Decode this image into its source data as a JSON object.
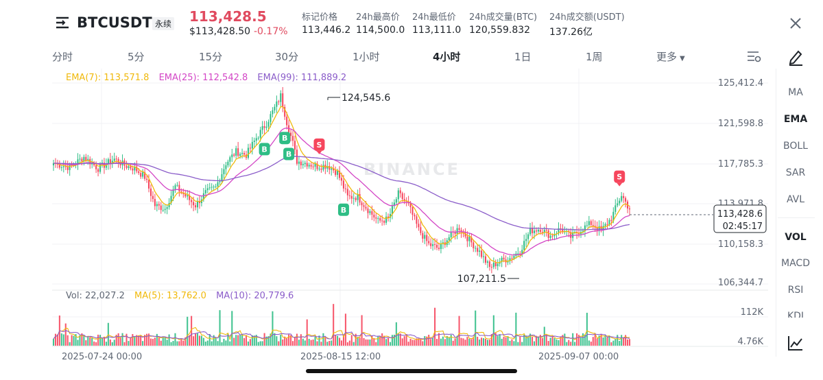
{
  "header": {
    "symbol": "BTCUSDT",
    "contract_type": "永续",
    "last_price": "113,428.5",
    "last_price_usd": "$113,428.50",
    "change_pct": "-0.17%",
    "stats": [
      {
        "label": "标记价格",
        "value": "113,446.2"
      },
      {
        "label": "24h最高价",
        "value": "114,500.0"
      },
      {
        "label": "24h最低价",
        "value": "113,111.0"
      },
      {
        "label": "24h成交量(BTC)",
        "value": "120,559.832"
      },
      {
        "label": "24h成交额(USDT)",
        "value": "137.26亿"
      }
    ]
  },
  "timeframes": [
    "分时",
    "5分",
    "15分",
    "30分",
    "1小时",
    "4小时",
    "1日",
    "1周",
    "更多"
  ],
  "active_timeframe": "4小时",
  "sidebar": [
    "MA",
    "EMA",
    "BOLL",
    "SAR",
    "AVL",
    "VOL",
    "MACD",
    "RSI",
    "KDJ"
  ],
  "sidebar_active": [
    "EMA",
    "VOL"
  ],
  "chart_data": {
    "type": "candlestick",
    "interval": "4h",
    "watermark": "BINANCE",
    "price_axis": [
      "125,412.4",
      "121,598.8",
      "117,785.3",
      "113,971.8",
      "110,158.3",
      "106,344.7"
    ],
    "ylim": [
      106344.7,
      125412.4
    ],
    "x_ticks": [
      "2025-07-24 00:00",
      "2025-08-15 12:00",
      "2025-09-07 00:00"
    ],
    "ema_legend": [
      {
        "name": "EMA(7)",
        "value": "113,571.8",
        "color": "#f0b90b"
      },
      {
        "name": "EMA(25)",
        "value": "112,542.8",
        "color": "#d346c6"
      },
      {
        "name": "EMA(99)",
        "value": "111,889.2",
        "color": "#8a5cc9"
      }
    ],
    "high_label": "124,545.6",
    "low_label": "107,211.5",
    "current_price_label": "113,428.6",
    "countdown": "02:45:17",
    "anchor_closes": [
      [
        0,
        117800
      ],
      [
        8,
        117400
      ],
      [
        15,
        118400
      ],
      [
        22,
        117300
      ],
      [
        30,
        118200
      ],
      [
        35,
        117600
      ],
      [
        40,
        117300
      ],
      [
        45,
        116500
      ],
      [
        50,
        113800
      ],
      [
        55,
        113500
      ],
      [
        60,
        115600
      ],
      [
        65,
        114700
      ],
      [
        70,
        113800
      ],
      [
        75,
        115000
      ],
      [
        80,
        115500
      ],
      [
        85,
        117800
      ],
      [
        90,
        118900
      ],
      [
        95,
        118600
      ],
      [
        100,
        120200
      ],
      [
        105,
        121600
      ],
      [
        110,
        123400
      ],
      [
        112,
        124200
      ],
      [
        115,
        121700
      ],
      [
        118,
        119700
      ],
      [
        120,
        118000
      ],
      [
        125,
        117800
      ],
      [
        130,
        117500
      ],
      [
        135,
        117600
      ],
      [
        140,
        116900
      ],
      [
        145,
        114600
      ],
      [
        150,
        114600
      ],
      [
        155,
        113400
      ],
      [
        160,
        112300
      ],
      [
        165,
        112500
      ],
      [
        170,
        114900
      ],
      [
        175,
        113800
      ],
      [
        180,
        111500
      ],
      [
        185,
        110100
      ],
      [
        190,
        109700
      ],
      [
        195,
        110800
      ],
      [
        200,
        111700
      ],
      [
        205,
        110500
      ],
      [
        210,
        109400
      ],
      [
        215,
        107900
      ],
      [
        220,
        108500
      ],
      [
        225,
        108800
      ],
      [
        230,
        109500
      ],
      [
        235,
        111400
      ],
      [
        240,
        111600
      ],
      [
        245,
        110900
      ],
      [
        250,
        111600
      ],
      [
        255,
        110800
      ],
      [
        260,
        111500
      ],
      [
        265,
        112100
      ],
      [
        270,
        111400
      ],
      [
        275,
        112600
      ],
      [
        280,
        114800
      ],
      [
        284,
        113428
      ]
    ],
    "signals": [
      {
        "type": "B",
        "i": 104
      },
      {
        "type": "B",
        "i": 114
      },
      {
        "type": "B",
        "i": 116
      },
      {
        "type": "S",
        "i": 131
      },
      {
        "type": "B",
        "i": 143
      },
      {
        "type": "S",
        "i": 279
      }
    ],
    "volume_legend": [
      {
        "name": "Vol",
        "value": "22,027.2",
        "color": "#5e6673"
      },
      {
        "name": "MA(5)",
        "value": "13,762.0",
        "color": "#f0b90b"
      },
      {
        "name": "MA(10)",
        "value": "20,779.6",
        "color": "#8a5cc9"
      }
    ],
    "volume_axis": [
      "112K",
      "4.76K"
    ]
  },
  "colors": {
    "up": "#2ebd85",
    "down": "#f6465d",
    "accent": "#f0b90b",
    "price_red": "#e04a5f"
  }
}
